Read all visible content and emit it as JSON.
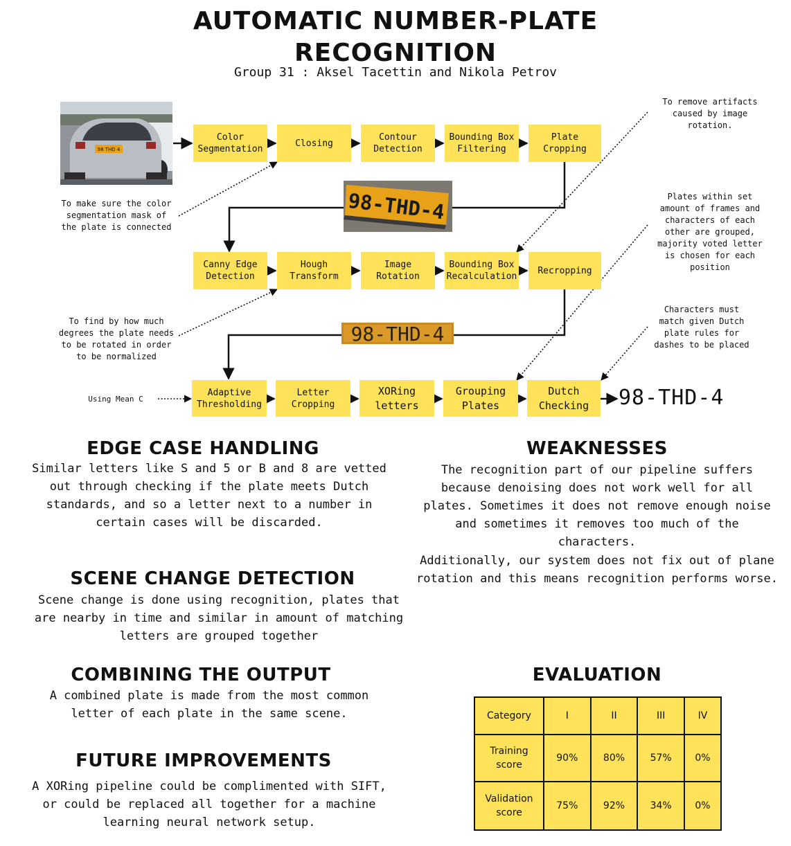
{
  "header": {
    "title_line1": "AUTOMATIC NUMBER-PLATE",
    "title_line2": "RECOGNITION",
    "subtitle": "Group 31 : Aksel Tacettin and Nikola Petrov"
  },
  "pipeline": {
    "row1": [
      "Color\nSegmentation",
      "Closing",
      "Contour\nDetection",
      "Bounding Box\nFiltering",
      "Plate\nCropping"
    ],
    "row2": [
      "Canny Edge\nDetection",
      "Hough\nTransform",
      "Image\nRotation",
      "Bounding Box\nRecalculation",
      "Recropping"
    ],
    "row3": [
      "Adaptive\nThresholding",
      "Letter\nCropping",
      "XORing\nletters",
      "Grouping\nPlates",
      "Dutch\nChecking"
    ],
    "result": "98-THD-4"
  },
  "plate_images": {
    "plate_small": "98 THD 4",
    "plate_crop1": "98-THD-4",
    "plate_crop2": "98-THD-4"
  },
  "notes": {
    "closing": "To make sure the color\nsegmentation mask of\nthe plate is connected",
    "hough": "To find by how much\ndegrees the plate needs\nto be rotated in order\nto be normalized",
    "thresholding": "Using Mean C",
    "recalc": "To remove artifacts\ncaused by image\nrotation.",
    "grouping": "Plates within set\namount of frames and\ncharacters of each\nother are grouped,\nmajority voted letter\nis chosen for each\nposition",
    "dutch": "Characters must\nmatch given Dutch\nplate rules for\ndashes to be placed"
  },
  "sections": {
    "edge": {
      "title": "EDGE CASE HANDLING",
      "text": "Similar letters like S and 5 or B and 8 are vetted out through checking if the plate meets Dutch standards, and so a letter next to a number in certain cases will be discarded."
    },
    "scene": {
      "title": "SCENE CHANGE DETECTION",
      "text": "Scene change is done using recognition, plates that are nearby in time and similar in amount of matching letters are grouped together"
    },
    "combining": {
      "title": "COMBINING THE OUTPUT",
      "text": "A combined plate is made from the most common letter of each plate in the same scene."
    },
    "future": {
      "title": "FUTURE IMPROVEMENTS",
      "text": "A XORing pipeline could be complimented with SIFT, or could be replaced all together for a machine learning neural network setup."
    },
    "weakness": {
      "title": "WEAKNESSES",
      "text1": "The recognition part of our pipeline suffers because denoising does not work well for all plates. Sometimes it does not remove enough noise and sometimes it removes too much of the characters.",
      "text2": "Additionally, our system does not fix out of plane rotation and this means recognition performs worse."
    },
    "evaluation": {
      "title": "EVALUATION"
    }
  },
  "chart_data": {
    "type": "table",
    "columns": [
      "Category",
      "I",
      "II",
      "III",
      "IV"
    ],
    "rows": [
      {
        "label": "Training\nscore",
        "values": [
          "90%",
          "80%",
          "57%",
          "0%"
        ]
      },
      {
        "label": "Validation\nscore",
        "values": [
          "75%",
          "92%",
          "34%",
          "0%"
        ]
      }
    ]
  },
  "colors": {
    "box": "#fde25a",
    "text": "#111111",
    "plate": "#e8a21a"
  }
}
